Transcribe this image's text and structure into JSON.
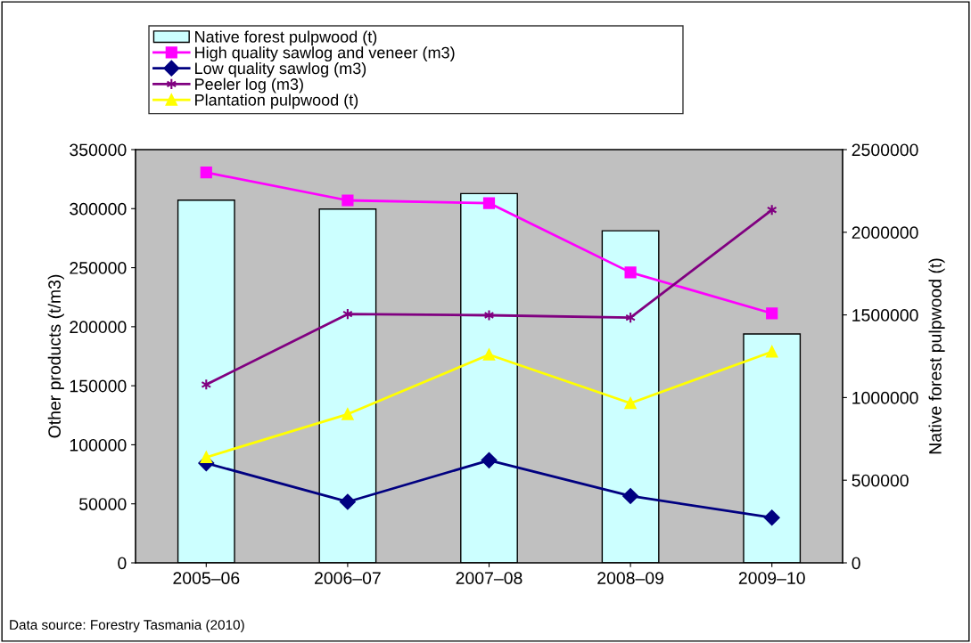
{
  "chart_data": {
    "type": "bar",
    "categories": [
      "2005–06",
      "2006–07",
      "2007–08",
      "2008–09",
      "2009–10"
    ],
    "ylabel": "Other products (t/m3)",
    "y2label": "Native forest pulpwood (t)",
    "ylim": [
      0,
      350000
    ],
    "yticks": [
      0,
      50000,
      100000,
      150000,
      200000,
      250000,
      300000,
      350000
    ],
    "y2lim": [
      0,
      2500000
    ],
    "y2ticks": [
      0,
      500000,
      1000000,
      1500000,
      2000000,
      2500000
    ],
    "legend": "top",
    "grid": false,
    "series": [
      {
        "name": "Native forest pulpwood (t)",
        "axis": "y2",
        "color": "#ccffff",
        "values": [
          2194000,
          2140000,
          2234000,
          2009000,
          1385000
        ]
      },
      {
        "name": "High quality sawlog and veneer (m3)",
        "type": "line",
        "marker": "square",
        "color": "#ff00ff",
        "values": [
          330600,
          307000,
          304700,
          246000,
          211300
        ]
      },
      {
        "name": "Low quality sawlog (m3)",
        "type": "line",
        "marker": "diamond",
        "color": "#000080",
        "values": [
          84400,
          51700,
          86900,
          56600,
          38300
        ]
      },
      {
        "name": "Peeler log (m3)",
        "type": "line",
        "marker": "cross",
        "color": "#800080",
        "values": [
          151000,
          210700,
          209700,
          207700,
          298900
        ]
      },
      {
        "name": "Plantation pulpwood (t)",
        "type": "line",
        "marker": "triangle",
        "color": "#ffff00",
        "values": [
          89400,
          125900,
          176300,
          135200,
          178800
        ]
      }
    ],
    "annotations": [
      "Data source: Forestry Tasmania (2010)"
    ]
  }
}
